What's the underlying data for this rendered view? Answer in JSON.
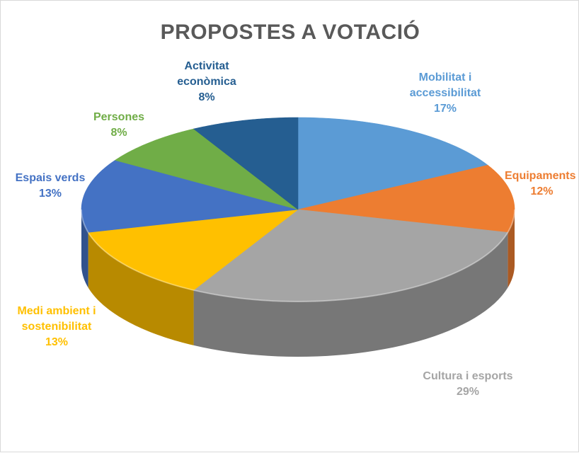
{
  "chart_data": {
    "type": "pie",
    "title": "PROPOSTES A VOTACIÓ",
    "slices": [
      {
        "label": "Mobilitat i accessibilitat",
        "label_lines": [
          "Mobilitat i",
          "accessibilitat"
        ],
        "pct_label": "17%",
        "value": 17,
        "color": "#5b9bd5"
      },
      {
        "label": "Equipaments",
        "label_lines": [
          "Equipaments"
        ],
        "pct_label": "12%",
        "value": 12,
        "color": "#ed7d31"
      },
      {
        "label": "Cultura i esports",
        "label_lines": [
          "Cultura i esports"
        ],
        "pct_label": "29%",
        "value": 29,
        "color": "#a5a5a5"
      },
      {
        "label": "Medi ambient i sostenibilitat",
        "label_lines": [
          "Medi ambient i",
          "sostenibilitat"
        ],
        "pct_label": "13%",
        "value": 13,
        "color": "#ffc000"
      },
      {
        "label": "Espais verds",
        "label_lines": [
          "Espais verds"
        ],
        "pct_label": "13%",
        "value": 13,
        "color": "#4472c4"
      },
      {
        "label": "Persones",
        "label_lines": [
          "Persones"
        ],
        "pct_label": "8%",
        "value": 8,
        "color": "#70ad47"
      },
      {
        "label": "Activitat econòmica",
        "label_lines": [
          "Activitat",
          "econòmica"
        ],
        "pct_label": "8%",
        "value": 8,
        "color": "#255e91"
      }
    ]
  }
}
